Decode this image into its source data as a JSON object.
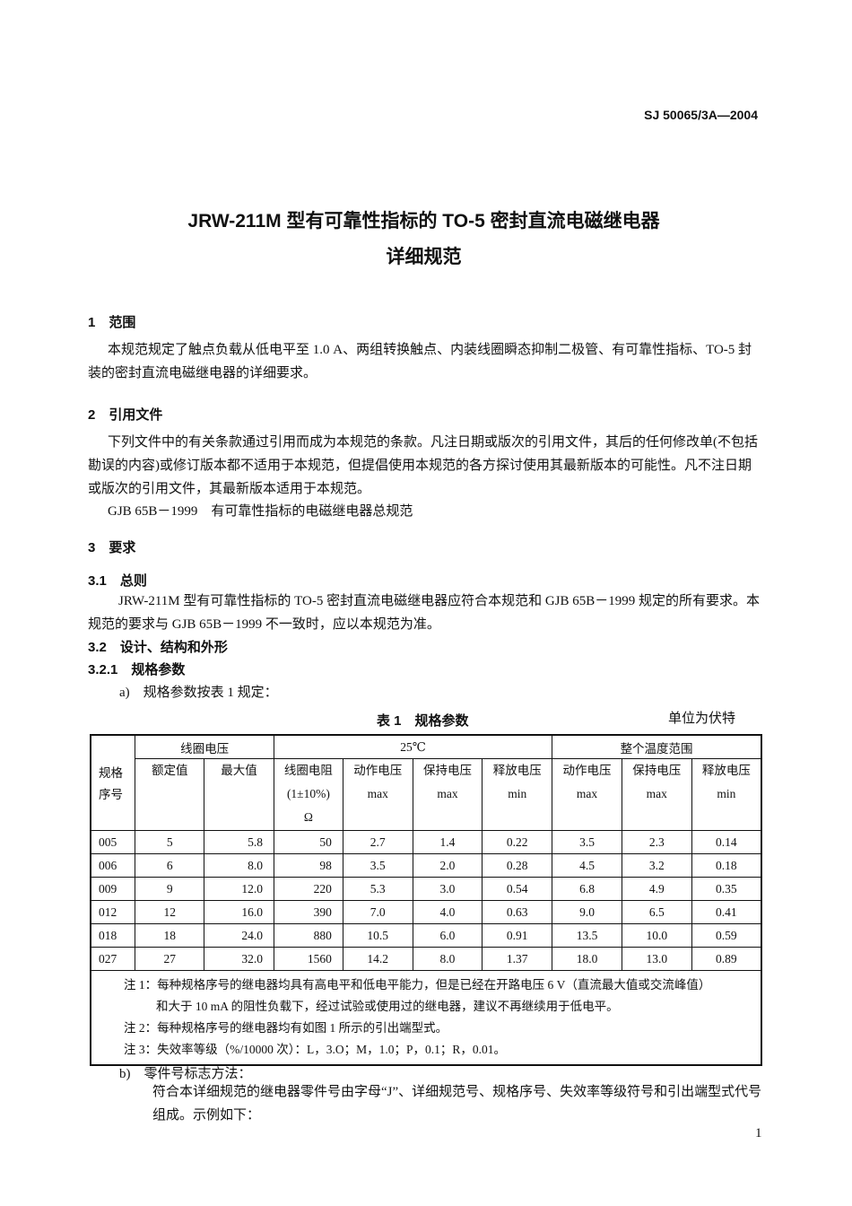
{
  "header": {
    "standard_no": "SJ 50065/3A—2004"
  },
  "title": {
    "line1": "JRW-211M 型有可靠性指标的 TO-5 密封直流电磁继电器",
    "line2": "详细规范"
  },
  "sections": {
    "s1_heading": "1　范围",
    "s1_text": "本规范规定了触点负载从低电平至 1.0 A、两组转换触点、内装线圈瞬态抑制二极管、有可靠性指标、TO-5 封装的密封直流电磁继电器的详细要求。",
    "s2_heading": "2　引用文件",
    "s2_text": "下列文件中的有关条款通过引用而成为本规范的条款。凡注日期或版次的引用文件，其后的任何修改单(不包括勘误的内容)或修订版本都不适用于本规范，但提倡使用本规范的各方探讨使用其最新版本的可能性。凡不注日期或版次的引用文件，其最新版本适用于本规范。",
    "s2_ref": "GJB 65B－1999　有可靠性指标的电磁继电器总规范",
    "s3_heading": "3　要求",
    "s31_heading": "3.1　总则",
    "s31_text": "JRW-211M 型有可靠性指标的 TO-5 密封直流电磁继电器应符合本规范和 GJB 65B－1999 规定的所有要求。本规范的要求与 GJB 65B－1999 不一致时，应以本规范为准。",
    "s32_heading": "3.2　设计、结构和外形",
    "s321_heading": "3.2.1　规格参数",
    "item_a": "a)　规格参数按表 1 规定：",
    "item_b": "b)　零件号标志方法：",
    "item_b_text": "符合本详细规范的继电器零件号由字母“J”、详细规范号、规格序号、失效率等级符号和引出端型式代号组成。示例如下："
  },
  "table1": {
    "caption": "表 1　规格参数",
    "unit": "单位为伏特",
    "head": {
      "spec": "规格序号",
      "coil_voltage": "线圈电压",
      "t25": "25℃",
      "full_range": "整个温度范围",
      "rated": "额定值",
      "max_value": "最大值",
      "coil_res": "线圈电阻",
      "coil_res_tol": "(1±10%)",
      "ohm": "Ω",
      "operate": "动作电压",
      "hold": "保持电压",
      "release": "释放电压",
      "max": "max",
      "min": "min"
    },
    "rows": [
      [
        "005",
        "5",
        "5.8",
        "50",
        "2.7",
        "1.4",
        "0.22",
        "3.5",
        "2.3",
        "0.14"
      ],
      [
        "006",
        "6",
        "8.0",
        "98",
        "3.5",
        "2.0",
        "0.28",
        "4.5",
        "3.2",
        "0.18"
      ],
      [
        "009",
        "9",
        "12.0",
        "220",
        "5.3",
        "3.0",
        "0.54",
        "6.8",
        "4.9",
        "0.35"
      ],
      [
        "012",
        "12",
        "16.0",
        "390",
        "7.0",
        "4.0",
        "0.63",
        "9.0",
        "6.5",
        "0.41"
      ],
      [
        "018",
        "18",
        "24.0",
        "880",
        "10.5",
        "6.0",
        "0.91",
        "13.5",
        "10.0",
        "0.59"
      ],
      [
        "027",
        "27",
        "32.0",
        "1560",
        "14.2",
        "8.0",
        "1.37",
        "18.0",
        "13.0",
        "0.89"
      ]
    ],
    "notes": {
      "n1a": "注 1：每种规格序号的继电器均具有高电平和低电平能力，但是已经在开路电压 6 V（直流最大值或交流峰值）",
      "n1b": "和大于 10 mA 的阻性负载下，经过试验或使用过的继电器，建议不再继续用于低电平。",
      "n2": "注 2：每种规格序号的继电器均有如图 1 所示的引出端型式。",
      "n3": "注 3：失效率等级（%/10000 次）：L，3.O；M，1.0；P，0.1；R，0.01。"
    }
  },
  "footer": {
    "page_number": "1"
  }
}
